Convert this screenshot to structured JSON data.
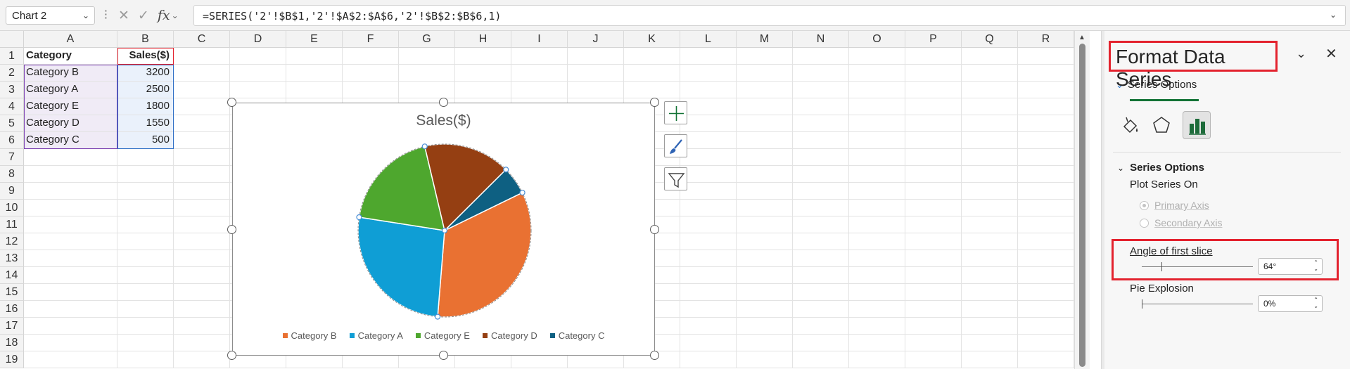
{
  "formula_bar": {
    "name_box": "Chart 2",
    "formula": "=SERIES('2'!$B$1,'2'!$A$2:$A$6,'2'!$B$2:$B$6,1)"
  },
  "sheet": {
    "columns": [
      "A",
      "B",
      "C",
      "D",
      "E",
      "F",
      "G",
      "H",
      "I",
      "J",
      "K",
      "L",
      "M",
      "N",
      "O",
      "P",
      "Q",
      "R"
    ],
    "rows": [
      "1",
      "2",
      "3",
      "4",
      "5",
      "6",
      "7",
      "8",
      "9",
      "10",
      "11",
      "12",
      "13",
      "14",
      "15",
      "16",
      "17",
      "18",
      "19"
    ],
    "header_row": [
      "Category",
      "Sales($)"
    ],
    "data": [
      [
        "Category B",
        "3200"
      ],
      [
        "Category A",
        "2500"
      ],
      [
        "Category E",
        "1800"
      ],
      [
        "Category D",
        "1550"
      ],
      [
        "Category C",
        "500"
      ]
    ]
  },
  "chart_data": {
    "type": "pie",
    "title": "Sales($)",
    "categories": [
      "Category B",
      "Category A",
      "Category E",
      "Category D",
      "Category C"
    ],
    "values": [
      3200,
      2500,
      1800,
      1550,
      500
    ],
    "colors": [
      "#E97132",
      "#156082",
      "#4EA72E",
      "#A02B93",
      "#0F9ED5"
    ],
    "display_colors": [
      "#E97132",
      "#0F9ED5",
      "#4EA72E",
      "#953F12",
      "#0E6082"
    ],
    "first_slice_angle_deg": 64,
    "legend_position": "bottom"
  },
  "pane": {
    "title": "Format Data Series",
    "tab_label": "Series Options",
    "section_title": "Series Options",
    "plot_series_on_label": "Plot Series On",
    "primary_axis": "Primary Axis",
    "secondary_axis": "Secondary Axis",
    "angle_label": "Angle of first slice",
    "angle_value": "64°",
    "angle_fraction": 0.178,
    "explosion_label": "Pie Explosion",
    "explosion_value": "0%",
    "explosion_fraction": 0.0
  }
}
